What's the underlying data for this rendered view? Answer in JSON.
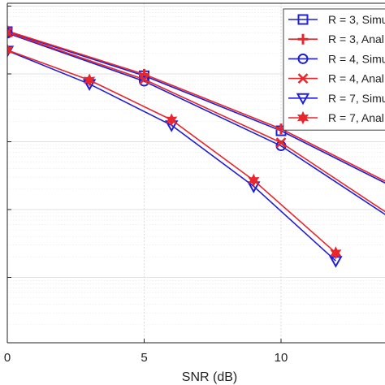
{
  "chart_data": {
    "type": "line",
    "xlabel": "SNR (dB)",
    "ylabel": "",
    "title": "",
    "y_scale": "log",
    "xlim": [
      0,
      13.8
    ],
    "x_ticks": [
      0,
      5,
      10
    ],
    "x_tick_labels": [
      "0",
      "5",
      "10"
    ],
    "grid": true,
    "legend_position": "top-right",
    "colors": {
      "blue": "#1f1fd6",
      "red": "#e8262b"
    },
    "series": [
      {
        "name": "R = 3, Simu",
        "color": "#1f1fd6",
        "marker": "square",
        "x": [
          0,
          5,
          10,
          14.0
        ],
        "y": [
          0.042,
          0.0094,
          0.00145,
          0.000225
        ]
      },
      {
        "name": "R = 3, Anal",
        "color": "#e8262b",
        "marker": "plus",
        "x": [
          0,
          5,
          10,
          14.0
        ],
        "y": [
          0.043,
          0.0099,
          0.00155,
          0.00024
        ]
      },
      {
        "name": "R = 4, Simu",
        "color": "#1f1fd6",
        "marker": "circle",
        "x": [
          0,
          5,
          10,
          14.0
        ],
        "y": [
          0.04,
          0.0078,
          0.00087,
          7.5e-05
        ]
      },
      {
        "name": "R = 4, Anal",
        "color": "#e8262b",
        "marker": "x",
        "x": [
          0,
          5,
          10,
          14.0
        ],
        "y": [
          0.041,
          0.0083,
          0.00097,
          8.25e-05
        ]
      },
      {
        "name": "R = 7, Simu",
        "color": "#1f1fd6",
        "marker": "triangle-down",
        "x": [
          0,
          3,
          6,
          9,
          12
        ],
        "y": [
          0.022,
          0.0071,
          0.00175,
          0.00022,
          1.75e-05
        ]
      },
      {
        "name": "R = 7, Anal",
        "color": "#e8262b",
        "marker": "hexagram",
        "x": [
          0,
          3,
          6,
          9,
          12
        ],
        "y": [
          0.0225,
          0.0081,
          0.0021,
          0.00027,
          2.3e-05
        ]
      }
    ]
  },
  "legend": {
    "entries": [
      "R = 3, Simu",
      "R = 3, Anal",
      "R = 4, Simu",
      "R = 4, Anal",
      "R = 7, Simu",
      "R = 7, Anal"
    ]
  }
}
